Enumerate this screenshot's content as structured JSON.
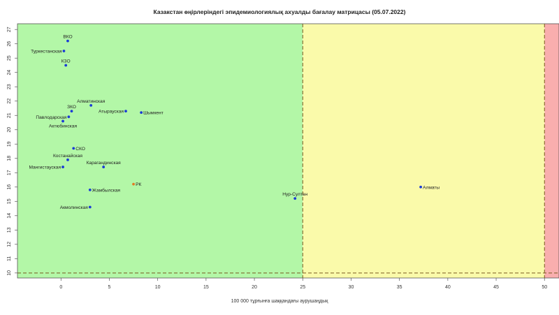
{
  "chart_data": {
    "type": "scatter",
    "title": "Казакстан өңірлеріндегі эпидемиологиялық ахуалды бағалау матрицасы  (05.07.2022)",
    "xlabel": "100 000 тұрғынға шаққандағы аурушаңдық",
    "ylabel": "",
    "xlim": [
      -4.5,
      51.5
    ],
    "ylim": [
      9.65,
      27.4
    ],
    "xticks": [
      0,
      5,
      10,
      15,
      20,
      25,
      30,
      35,
      40,
      45,
      50
    ],
    "yticks": [
      10,
      11,
      12,
      13,
      14,
      15,
      16,
      17,
      18,
      19,
      20,
      21,
      22,
      23,
      24,
      25,
      26,
      27
    ],
    "zones": [
      {
        "name": "green",
        "x0": -4.5,
        "x1": 25,
        "color": "#b3f7a7"
      },
      {
        "name": "yellow",
        "x0": 25,
        "x1": 50,
        "color": "#fafaaa"
      },
      {
        "name": "red",
        "x0": 50,
        "x1": 51.5,
        "color": "#f9aeae"
      }
    ],
    "threshold_lines": {
      "x": [
        25,
        50
      ],
      "y": [
        10
      ]
    },
    "points": [
      {
        "label": "ВКО",
        "x": 0.7,
        "y": 26.2,
        "color": "#1b3bd6",
        "pos": "above"
      },
      {
        "label": "Туркестанская",
        "x": 0.3,
        "y": 25.5,
        "color": "#1b3bd6",
        "pos": "left"
      },
      {
        "label": "КЗО",
        "x": 0.5,
        "y": 24.5,
        "color": "#1b3bd6",
        "pos": "above"
      },
      {
        "label": "Алматинская",
        "x": 3.1,
        "y": 21.7,
        "color": "#1b3bd6",
        "pos": "above"
      },
      {
        "label": "ЗКО",
        "x": 1.1,
        "y": 21.3,
        "color": "#1b3bd6",
        "pos": "above"
      },
      {
        "label": "Атырауская",
        "x": 6.7,
        "y": 21.3,
        "color": "#1b3bd6",
        "pos": "left"
      },
      {
        "label": "Шымкент",
        "x": 8.3,
        "y": 21.2,
        "color": "#1b3bd6",
        "pos": "right"
      },
      {
        "label": "Павлодарская",
        "x": 0.8,
        "y": 20.9,
        "color": "#1b3bd6",
        "pos": "left"
      },
      {
        "label": "Актюбинская",
        "x": 0.2,
        "y": 20.6,
        "color": "#1b3bd6",
        "pos": "below"
      },
      {
        "label": "СКО",
        "x": 1.3,
        "y": 18.7,
        "color": "#1b3bd6",
        "pos": "right"
      },
      {
        "label": "Костанайская",
        "x": 0.7,
        "y": 17.9,
        "color": "#1b3bd6",
        "pos": "above"
      },
      {
        "label": "Карагандинская",
        "x": 4.4,
        "y": 17.4,
        "color": "#1b3bd6",
        "pos": "above"
      },
      {
        "label": "Мангистауская",
        "x": 0.2,
        "y": 17.4,
        "color": "#1b3bd6",
        "pos": "left"
      },
      {
        "label": "РК",
        "x": 7.5,
        "y": 16.2,
        "color": "#e07b24",
        "pos": "right"
      },
      {
        "label": "Жамбылская",
        "x": 3.0,
        "y": 15.8,
        "color": "#1b3bd6",
        "pos": "right"
      },
      {
        "label": "Алматы",
        "x": 37.2,
        "y": 16.0,
        "color": "#1b3bd6",
        "pos": "right"
      },
      {
        "label": "Нур-Султан",
        "x": 24.2,
        "y": 15.2,
        "color": "#1b3bd6",
        "pos": "above"
      },
      {
        "label": "Акмолинская",
        "x": 3.0,
        "y": 14.6,
        "color": "#1b3bd6",
        "pos": "left"
      }
    ]
  }
}
